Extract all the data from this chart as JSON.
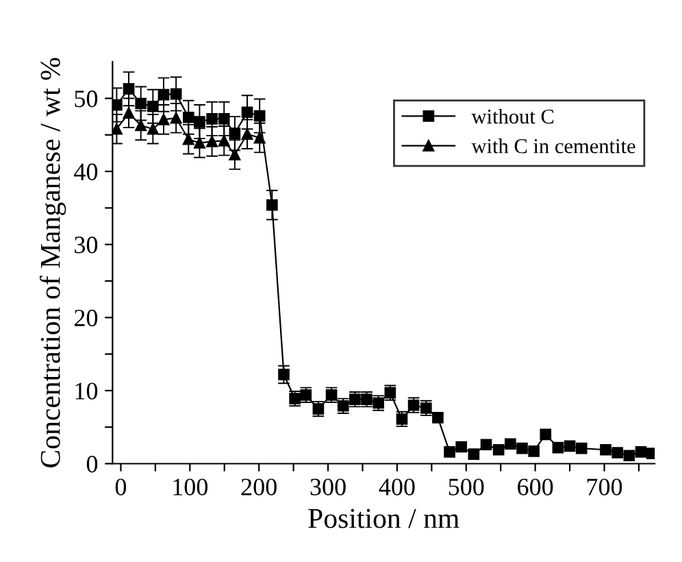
{
  "chart_data": {
    "type": "line",
    "xlabel": "Position / nm",
    "ylabel": "Concentration of Manganese / wt %",
    "xlim": [
      -12,
      773
    ],
    "ylim": [
      0,
      55
    ],
    "xticks": [
      0,
      {
        "value": 50,
        "label": null
      },
      100,
      {
        "value": 150,
        "label": null
      },
      200,
      {
        "value": 250,
        "label": null
      },
      300,
      {
        "value": 350,
        "label": null
      },
      400,
      {
        "value": 450,
        "label": null
      },
      500,
      {
        "value": 550,
        "label": null
      },
      600,
      {
        "value": 650,
        "label": null
      },
      700,
      {
        "value": 750,
        "label": null
      }
    ],
    "yticks": [
      0,
      {
        "value": 5,
        "label": null
      },
      10,
      {
        "value": 15,
        "label": null
      },
      20,
      {
        "value": 25,
        "label": null
      },
      30,
      {
        "value": 35,
        "label": null
      },
      40,
      {
        "value": 45,
        "label": null
      },
      50
    ],
    "legend": "top right",
    "line_style": "solid",
    "grid": false,
    "series": [
      {
        "name": "without C",
        "color": "#000000",
        "marker": "square",
        "x": [
          -6,
          11.5,
          29,
          46.5,
          62,
          80,
          98,
          114,
          132,
          149.5,
          165,
          183,
          201,
          219,
          236,
          252,
          268,
          286,
          305,
          322,
          339,
          356,
          373,
          390,
          407,
          424,
          442,
          459,
          476,
          493,
          511,
          529,
          547,
          564,
          581,
          598,
          615,
          633,
          650,
          667,
          702,
          719,
          736,
          753,
          769
        ],
        "values": [
          49.1,
          51.3,
          49.3,
          48.9,
          50.5,
          50.6,
          47.4,
          46.8,
          47.2,
          47.2,
          45.2,
          48.1,
          47.6,
          35.4,
          12.2,
          8.9,
          9.4,
          7.5,
          9.4,
          7.9,
          8.8,
          8.8,
          8.3,
          9.7,
          6.1,
          8.0,
          7.6,
          6.3,
          1.6,
          2.3,
          1.3,
          2.6,
          1.9,
          2.7,
          2.1,
          1.7,
          4.0,
          2.2,
          2.4,
          2.1,
          1.9,
          1.5,
          1.1,
          1.6,
          1.4
        ],
        "errors": [
          2.3,
          2.3,
          2.3,
          2.3,
          2.3,
          2.3,
          2.3,
          2.3,
          2.3,
          2.3,
          2.3,
          2.3,
          2.3,
          2.0,
          1.2,
          1.0,
          1.0,
          1.0,
          1.0,
          1.0,
          1.0,
          1.0,
          1.0,
          1.0,
          1.0,
          1.0,
          1.0,
          null,
          null,
          null,
          null,
          null,
          null,
          null,
          null,
          null,
          null,
          null,
          null,
          null,
          null,
          null,
          null,
          null,
          null
        ]
      },
      {
        "name": "with C in cementite",
        "color": "#000000",
        "marker": "triangle",
        "x": [
          -6,
          11.5,
          29,
          46.5,
          62,
          80,
          98,
          114,
          132,
          149.5,
          165,
          183,
          201
        ],
        "values": [
          45.8,
          48.0,
          46.3,
          45.8,
          47.1,
          47.3,
          44.4,
          43.9,
          44.1,
          44.2,
          42.3,
          45.1,
          44.6
        ],
        "errors": [
          2,
          2,
          2,
          2,
          2,
          2,
          2,
          2,
          2,
          2,
          2,
          2,
          2
        ]
      }
    ]
  }
}
